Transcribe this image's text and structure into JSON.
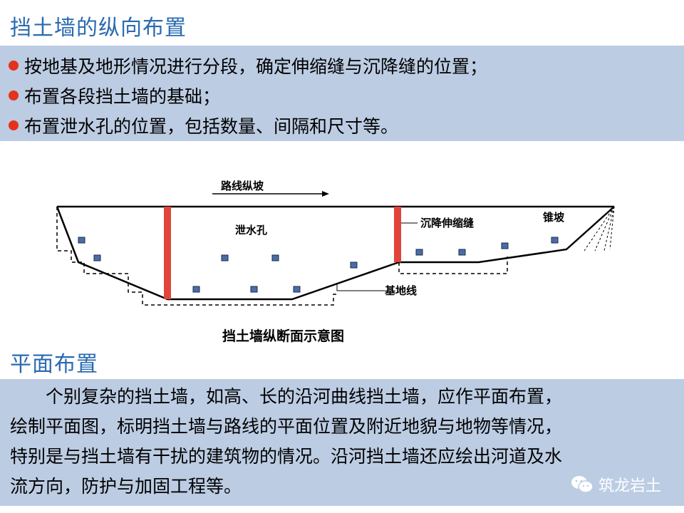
{
  "header": {
    "title": "挡土墙的纵向布置"
  },
  "bullets": [
    "按地基及地形情况进行分段，确定伸缩缝与沉降缝的位置；",
    "布置各段挡土墙的基础；",
    "布置泄水孔的位置，包括数量、间隔和尺寸等。"
  ],
  "diagram": {
    "direction_label": "路线纵坡",
    "drain_label": "泄水孔",
    "joint_label": "沉降伸缩缝",
    "cone_label": "锥坡",
    "base_label": "基地线",
    "caption": "挡土墙纵断面示意图",
    "colors": {
      "joint": "#e0443a",
      "drain": "#4a6da8"
    }
  },
  "section2": {
    "title": "平面布置",
    "lines": [
      "　　个别复杂的挡土墙，如高、长的沿河曲线挡土墙，应作平面布置，",
      "绘制平面图，标明挡土墙与路线的平面位置及附近地貌与地物等情况，",
      "特别是与挡土墙有干扰的建筑物的情况。沿河挡土墙还应绘出河道及水",
      "流方向，防护与加固工程等。"
    ]
  },
  "watermark": {
    "text": "筑龙岩土",
    "icon": "wechat-icon"
  }
}
